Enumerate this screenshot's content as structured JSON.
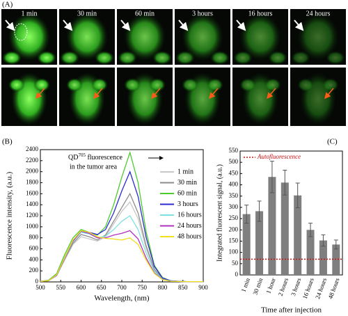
{
  "figure": {
    "panel_labels": [
      "(A)",
      "(B)",
      "(C)"
    ],
    "image_labels": [
      "1 min",
      "30 min",
      "60 min",
      "3 hours",
      "16 hours",
      "24 hours"
    ]
  },
  "chart_data": [
    {
      "type": "line",
      "annotation": {
        "prefix": "QD",
        "superscript": "705",
        "line1_rest": " fluorescence",
        "line2": "in the tumor area"
      },
      "x_label": "Wavelength, (nm)",
      "y_label": "Fluorescence intensity, (a.u.)",
      "x": [
        500,
        520,
        540,
        560,
        580,
        600,
        620,
        640,
        660,
        680,
        700,
        720,
        740,
        760,
        780,
        800,
        820,
        840,
        860,
        880,
        900
      ],
      "xlim": [
        500,
        900
      ],
      "xticks": [
        500,
        550,
        600,
        650,
        700,
        750,
        800,
        850,
        900
      ],
      "ylim": [
        0,
        2400
      ],
      "yticks": [
        0,
        200,
        400,
        600,
        800,
        1000,
        1200,
        1400,
        1600,
        1800,
        2000,
        2200,
        2400
      ],
      "legend": "upper right",
      "series": [
        {
          "name": "1 min",
          "color": "#c8c8c8",
          "values": [
            10,
            20,
            110,
            400,
            680,
            820,
            780,
            740,
            820,
            1050,
            1280,
            1450,
            1150,
            600,
            210,
            55,
            15,
            8,
            5,
            5,
            5
          ]
        },
        {
          "name": "30 min",
          "color": "#8c8c8c",
          "values": [
            10,
            25,
            120,
            420,
            700,
            860,
            820,
            760,
            850,
            1100,
            1350,
            1600,
            1250,
            650,
            230,
            60,
            15,
            8,
            5,
            5,
            5
          ]
        },
        {
          "name": "60 min",
          "color": "#4ccc2c",
          "values": [
            10,
            30,
            150,
            500,
            800,
            950,
            900,
            850,
            1000,
            1400,
            1900,
            2350,
            1800,
            900,
            300,
            80,
            20,
            10,
            5,
            5,
            5
          ]
        },
        {
          "name": "3 hours",
          "color": "#2a2ad0",
          "values": [
            10,
            20,
            130,
            450,
            750,
            920,
            900,
            860,
            950,
            1250,
            1650,
            2000,
            1550,
            800,
            280,
            70,
            20,
            10,
            5,
            5,
            5
          ]
        },
        {
          "name": "16 hours",
          "color": "#7fe0e0",
          "values": [
            10,
            20,
            120,
            430,
            730,
            900,
            870,
            800,
            830,
            950,
            1100,
            1200,
            950,
            520,
            190,
            50,
            15,
            8,
            5,
            5,
            5
          ]
        },
        {
          "name": "24 hours",
          "color": "#b030c0",
          "values": [
            10,
            20,
            120,
            440,
            740,
            920,
            880,
            800,
            800,
            850,
            880,
            930,
            780,
            430,
            160,
            45,
            12,
            8,
            5,
            5,
            5
          ]
        },
        {
          "name": "48 hours",
          "color": "#f0e020",
          "values": [
            10,
            20,
            130,
            450,
            760,
            930,
            900,
            820,
            790,
            780,
            760,
            800,
            680,
            390,
            150,
            40,
            12,
            8,
            5,
            5,
            5
          ]
        }
      ]
    },
    {
      "type": "bar",
      "x_label": "Time after injection",
      "y_label": "Integrated fluorescent signal, (a.u.)",
      "categories": [
        "1 min",
        "30 min",
        "1 hour",
        "2 hours",
        "3 hours",
        "16 hours",
        "24 hours",
        "48 hours"
      ],
      "values": [
        270,
        283,
        435,
        410,
        353,
        200,
        153,
        135
      ],
      "errors": [
        40,
        45,
        70,
        55,
        55,
        30,
        25,
        20
      ],
      "color": "#7f7f7f",
      "ylim": [
        0,
        550
      ],
      "yticks": [
        0,
        50,
        100,
        150,
        200,
        250,
        300,
        350,
        400,
        450,
        500,
        550
      ],
      "reference_line": {
        "name": "Autofluorescence",
        "value": 70,
        "color": "#d01010"
      }
    }
  ]
}
